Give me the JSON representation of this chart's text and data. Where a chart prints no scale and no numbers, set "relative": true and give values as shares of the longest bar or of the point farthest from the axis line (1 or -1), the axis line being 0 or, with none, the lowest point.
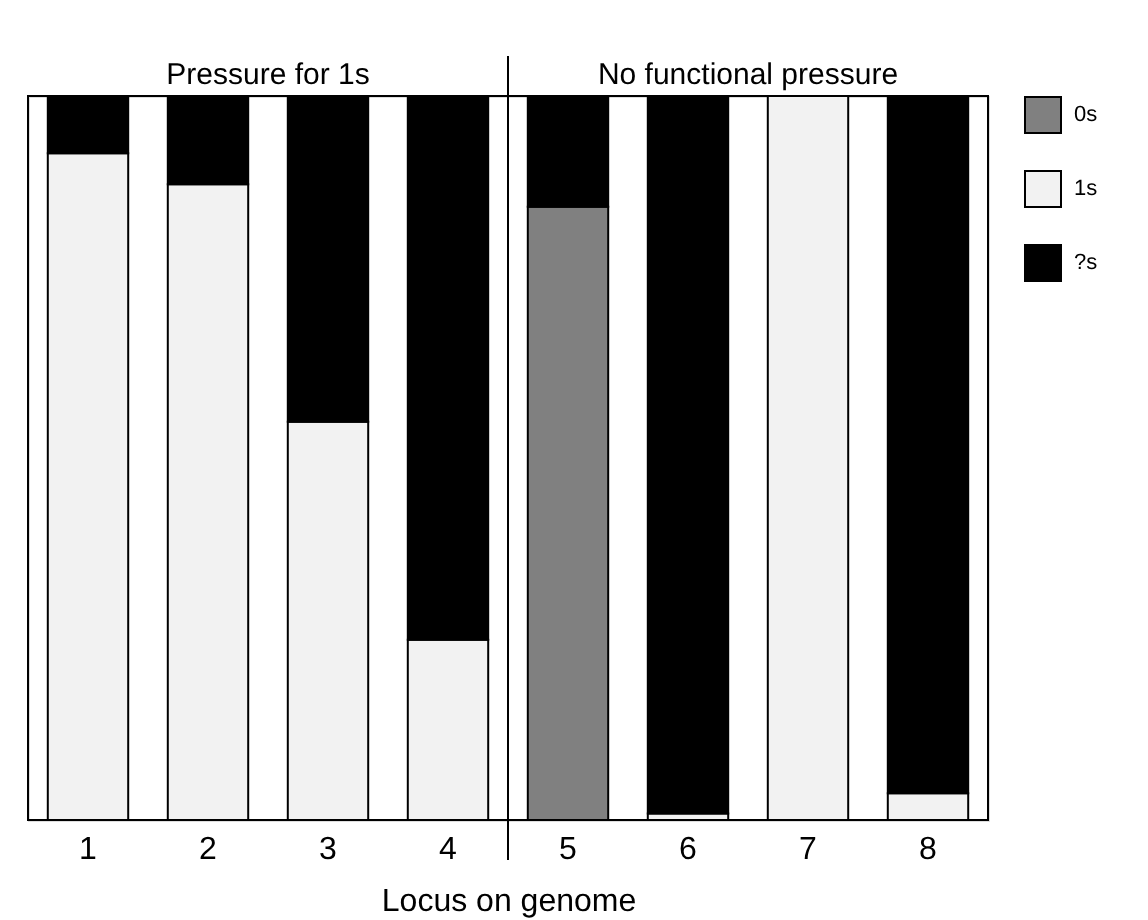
{
  "chart_data": {
    "type": "bar",
    "stacked": true,
    "relative": true,
    "xlabel": "Locus on genome",
    "categories": [
      "1",
      "2",
      "3",
      "4",
      "5",
      "6",
      "7",
      "8"
    ],
    "series": [
      {
        "name": "0s",
        "color": "#808080",
        "values": [
          null,
          null,
          null,
          null,
          0.847,
          null,
          null,
          null
        ]
      },
      {
        "name": "1s",
        "color": "#f2f2f2",
        "values": [
          0.921,
          0.878,
          0.55,
          0.249,
          null,
          0.009,
          1,
          0.037
        ]
      },
      {
        "name": "?s",
        "color": "#000000",
        "values": [
          0.079,
          0.122,
          0.45,
          0.751,
          0.153,
          0.991,
          null,
          0.963
        ]
      }
    ],
    "annotations": [
      "Pressure for 1s",
      "No functional pressure"
    ],
    "legend": "top right"
  }
}
